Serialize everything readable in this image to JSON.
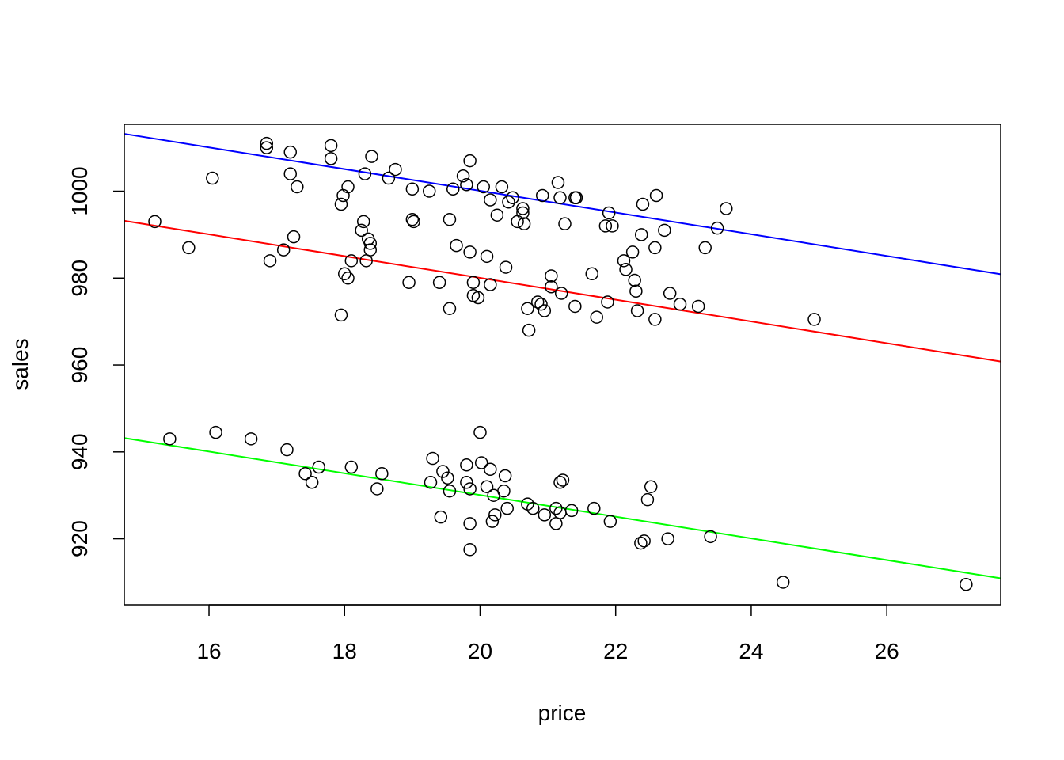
{
  "chart_data": {
    "type": "scatter",
    "title": "",
    "xlabel": "price",
    "ylabel": "sales",
    "xlim": [
      14.75,
      27.68
    ],
    "ylim": [
      904.8,
      1015.4
    ],
    "xticks": [
      16,
      18,
      20,
      22,
      24,
      26
    ],
    "yticks": [
      920,
      940,
      960,
      980,
      1000
    ],
    "grid": false,
    "legend": "none",
    "points": [
      [
        15.2,
        993
      ],
      [
        15.7,
        987
      ],
      [
        16.05,
        1003
      ],
      [
        16.85,
        1011
      ],
      [
        16.85,
        1010
      ],
      [
        17.2,
        1009
      ],
      [
        17.2,
        1004
      ],
      [
        17.3,
        1001
      ],
      [
        16.9,
        984
      ],
      [
        17.1,
        986.5
      ],
      [
        17.25,
        989.5
      ],
      [
        17.8,
        1010.5
      ],
      [
        17.8,
        1007.5
      ],
      [
        17.95,
        997
      ],
      [
        17.98,
        999
      ],
      [
        18.05,
        1001
      ],
      [
        18.3,
        1004
      ],
      [
        18.4,
        1008
      ],
      [
        18.65,
        1003
      ],
      [
        18.75,
        1005
      ],
      [
        18.0,
        981
      ],
      [
        18.05,
        980
      ],
      [
        18.1,
        984
      ],
      [
        17.95,
        971.5
      ],
      [
        18.25,
        991
      ],
      [
        18.28,
        993
      ],
      [
        18.32,
        984
      ],
      [
        18.35,
        989
      ],
      [
        18.38,
        988
      ],
      [
        18.38,
        986.5
      ],
      [
        18.95,
        979
      ],
      [
        19.0,
        1000.5
      ],
      [
        19.0,
        993.5
      ],
      [
        19.02,
        993
      ],
      [
        19.25,
        1000
      ],
      [
        19.4,
        979
      ],
      [
        19.55,
        993.5
      ],
      [
        19.55,
        973
      ],
      [
        19.6,
        1000.5
      ],
      [
        19.65,
        987.5
      ],
      [
        19.75,
        1003.5
      ],
      [
        19.8,
        1001.5
      ],
      [
        19.85,
        1007
      ],
      [
        19.85,
        986
      ],
      [
        19.9,
        979
      ],
      [
        19.9,
        976
      ],
      [
        19.97,
        975.5
      ],
      [
        20.05,
        1001
      ],
      [
        20.1,
        985
      ],
      [
        20.15,
        998
      ],
      [
        20.15,
        978.5
      ],
      [
        20.25,
        994.5
      ],
      [
        20.32,
        1001
      ],
      [
        20.38,
        982.5
      ],
      [
        20.42,
        997.5
      ],
      [
        20.48,
        998.5
      ],
      [
        20.55,
        993
      ],
      [
        20.63,
        996
      ],
      [
        20.63,
        995
      ],
      [
        20.65,
        992.5
      ],
      [
        20.7,
        973
      ],
      [
        20.72,
        968
      ],
      [
        20.85,
        974.5
      ],
      [
        20.9,
        974
      ],
      [
        20.92,
        999
      ],
      [
        20.95,
        972.5
      ],
      [
        21.05,
        980.5
      ],
      [
        21.05,
        978
      ],
      [
        21.15,
        1002
      ],
      [
        21.18,
        998.5
      ],
      [
        21.2,
        976.5
      ],
      [
        21.25,
        992.5
      ],
      [
        21.4,
        998.5
      ],
      [
        21.42,
        998.5
      ],
      [
        21.4,
        973.5
      ],
      [
        21.65,
        981
      ],
      [
        21.72,
        971
      ],
      [
        21.85,
        992
      ],
      [
        21.88,
        974.5
      ],
      [
        21.9,
        995
      ],
      [
        21.95,
        992
      ],
      [
        22.12,
        984
      ],
      [
        22.15,
        982
      ],
      [
        22.25,
        986
      ],
      [
        22.28,
        979.5
      ],
      [
        22.3,
        977
      ],
      [
        22.32,
        972.5
      ],
      [
        22.38,
        990
      ],
      [
        22.4,
        997
      ],
      [
        22.58,
        970.5
      ],
      [
        22.58,
        987
      ],
      [
        22.6,
        999
      ],
      [
        22.72,
        991
      ],
      [
        22.8,
        976.5
      ],
      [
        22.95,
        974
      ],
      [
        23.22,
        973.5
      ],
      [
        23.32,
        987
      ],
      [
        23.5,
        991.5
      ],
      [
        23.63,
        996
      ],
      [
        24.93,
        970.5
      ],
      [
        15.42,
        943
      ],
      [
        16.1,
        944.5
      ],
      [
        16.62,
        943
      ],
      [
        17.15,
        940.5
      ],
      [
        17.42,
        935
      ],
      [
        17.52,
        933
      ],
      [
        17.62,
        936.5
      ],
      [
        18.1,
        936.5
      ],
      [
        18.48,
        931.5
      ],
      [
        18.55,
        935
      ],
      [
        19.27,
        933
      ],
      [
        19.3,
        938.5
      ],
      [
        19.42,
        925
      ],
      [
        19.45,
        935.5
      ],
      [
        19.52,
        934
      ],
      [
        19.55,
        931
      ],
      [
        19.8,
        937
      ],
      [
        19.8,
        933
      ],
      [
        19.85,
        917.5
      ],
      [
        19.85,
        923.5
      ],
      [
        19.85,
        931.5
      ],
      [
        20.0,
        944.5
      ],
      [
        20.02,
        937.5
      ],
      [
        20.1,
        932
      ],
      [
        20.15,
        936
      ],
      [
        20.18,
        924
      ],
      [
        20.2,
        930
      ],
      [
        20.22,
        925.5
      ],
      [
        20.35,
        931
      ],
      [
        20.37,
        934.5
      ],
      [
        20.4,
        927
      ],
      [
        20.7,
        928
      ],
      [
        20.78,
        927
      ],
      [
        20.95,
        925.5
      ],
      [
        21.12,
        927
      ],
      [
        21.12,
        923.5
      ],
      [
        21.18,
        926
      ],
      [
        21.18,
        933
      ],
      [
        21.22,
        933.5
      ],
      [
        21.35,
        926.5
      ],
      [
        21.68,
        927
      ],
      [
        21.92,
        924
      ],
      [
        22.37,
        919
      ],
      [
        22.42,
        919.5
      ],
      [
        22.47,
        929
      ],
      [
        22.52,
        932
      ],
      [
        22.77,
        920
      ],
      [
        23.4,
        920.5
      ],
      [
        24.47,
        910
      ],
      [
        27.17,
        909.5
      ]
    ],
    "lines": [
      {
        "color": "#0000ff",
        "x": [
          14.75,
          27.68
        ],
        "y": [
          1013.2,
          980.9
        ]
      },
      {
        "color": "#ff0000",
        "x": [
          14.75,
          27.68
        ],
        "y": [
          993.2,
          960.8
        ]
      },
      {
        "color": "#00ff00",
        "x": [
          14.75,
          27.68
        ],
        "y": [
          943.2,
          910.9
        ]
      }
    ]
  }
}
